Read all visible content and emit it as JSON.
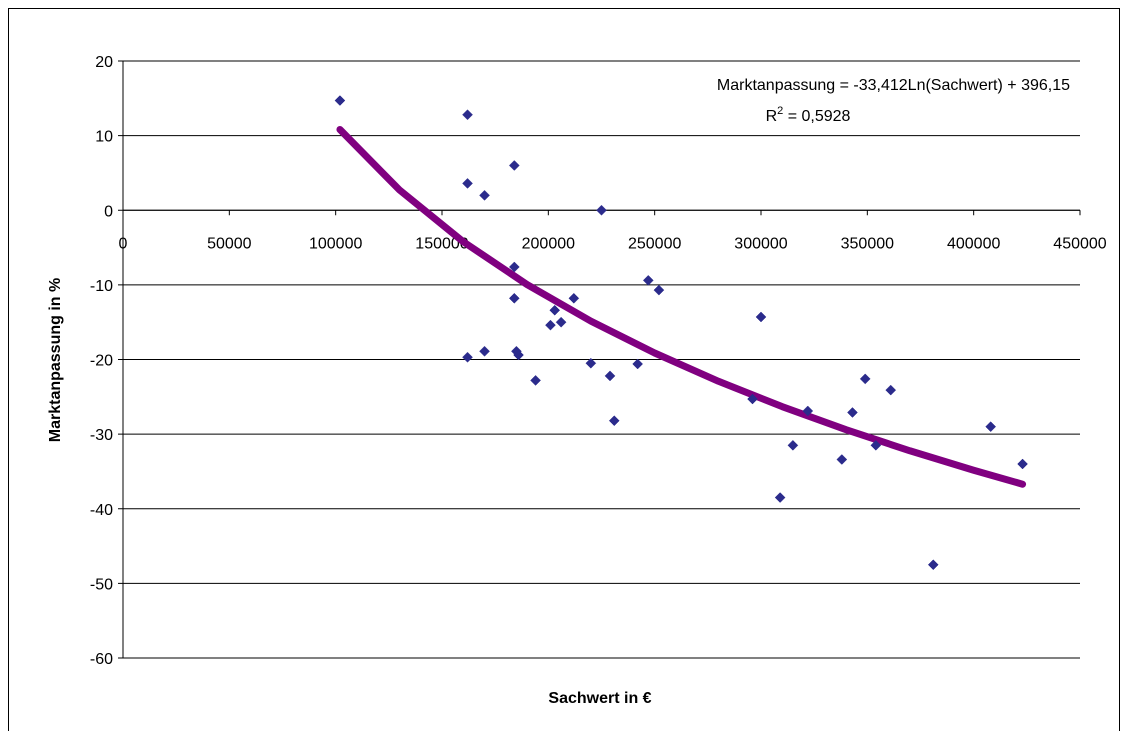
{
  "chart_data": {
    "type": "scatter",
    "x_label": "Sachwert in €",
    "y_label": "Marktanpassung in %",
    "trend_equation": "Marktanpassung = -33,412Ln(Sachwert) + 396,15",
    "r_squared": {
      "base": "R",
      "sup": "2",
      "rest": " = 0,5928"
    },
    "xlim": [
      0,
      450000
    ],
    "xticks": [
      0,
      50000,
      100000,
      150000,
      200000,
      250000,
      300000,
      350000,
      400000,
      450000
    ],
    "ylim": [
      -60,
      20
    ],
    "yticks": [
      -60,
      -50,
      -40,
      -30,
      -20,
      -10,
      0,
      10,
      20
    ],
    "grid": true,
    "series": [
      {
        "kind": "points",
        "marker": "diamond",
        "color": "#2b2b8c",
        "x": [
          102000,
          162000,
          162000,
          170000,
          184000,
          225000,
          184000,
          184000,
          212000,
          203000,
          201000,
          206000,
          162000,
          170000,
          185000,
          186000,
          194000,
          220000,
          229000,
          231000,
          242000,
          247000,
          252000,
          300000,
          296000,
          309000,
          315000,
          322000,
          338000,
          343000,
          349000,
          354000,
          361000,
          381000,
          408000,
          423000
        ],
        "values": [
          14.7,
          12.8,
          3.6,
          2.0,
          6.0,
          0.0,
          -7.6,
          -11.8,
          -11.8,
          -13.4,
          -15.4,
          -15.0,
          -19.7,
          -18.9,
          -18.9,
          -19.4,
          -22.8,
          -20.5,
          -22.2,
          -28.2,
          -20.6,
          -9.4,
          -10.7,
          -14.3,
          -25.3,
          -38.5,
          -31.5,
          -26.9,
          -33.4,
          -27.1,
          -22.6,
          -31.5,
          -24.1,
          -47.5,
          -29.0,
          -34.0
        ]
      },
      {
        "kind": "trendline",
        "color": "#800080",
        "x": [
          102000,
          130000,
          160000,
          190000,
          220000,
          250000,
          280000,
          310000,
          340000,
          370000,
          400000,
          423000
        ],
        "values": [
          10.82,
          2.72,
          -4.22,
          -9.96,
          -14.86,
          -19.13,
          -22.92,
          -26.32,
          -29.41,
          -32.23,
          -34.84,
          -36.71
        ]
      }
    ]
  }
}
